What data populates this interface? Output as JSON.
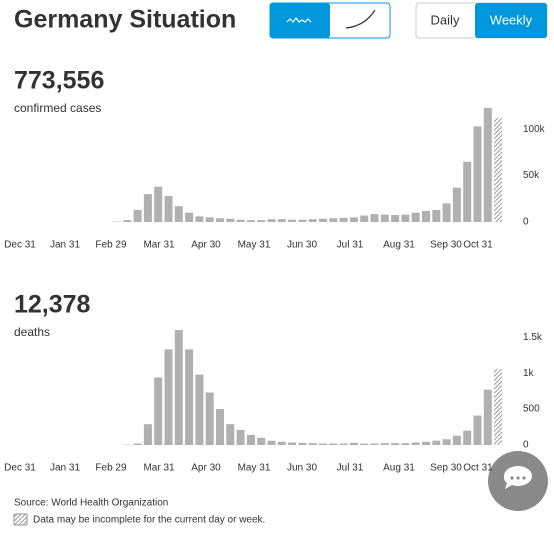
{
  "title": "Germany Situation",
  "buttons": [
    "Daily",
    "Weekly"
  ],
  "source": "Source:  World Health Organization",
  "note": "Data may be incomplete for the current day or week.",
  "chart_data": [
    {
      "type": "bar",
      "total": "773,556",
      "subtitle": "confirmed cases",
      "color": "#b0b0b0",
      "hatched_last": true,
      "categories": [
        null,
        null,
        null,
        null,
        null,
        null,
        null,
        null,
        null,
        null,
        null,
        null,
        null,
        null,
        null,
        null,
        null,
        null,
        null,
        null,
        null,
        null,
        null,
        null,
        null,
        null,
        null,
        null,
        null,
        null,
        null,
        null,
        null,
        null,
        null,
        null,
        null,
        null
      ],
      "values": [
        500,
        2000,
        13000,
        30000,
        38000,
        28000,
        17000,
        10000,
        6000,
        5000,
        4000,
        3500,
        2500,
        2000,
        2000,
        3000,
        3000,
        2500,
        2500,
        3000,
        3500,
        4000,
        4500,
        5000,
        7000,
        8500,
        8000,
        7500,
        8000,
        10000,
        12000,
        13000,
        20000,
        37000,
        65000,
        103000,
        123000,
        112000
      ],
      "xticks": [
        "Dec 31",
        "Jan 31",
        "Feb 29",
        "Mar 31",
        "Apr 30",
        "May 31",
        "Jun 30",
        "Jul 31",
        "Aug 31",
        "Sep 30",
        "Oct 31"
      ],
      "ylim": [
        0,
        125000
      ],
      "yticks": [
        {
          "value": 0,
          "label": "0"
        },
        {
          "value": 50000,
          "label": "50k"
        },
        {
          "value": 100000,
          "label": "100k"
        }
      ]
    },
    {
      "type": "bar",
      "total": "12,378",
      "subtitle": "deaths",
      "color": "#b0b0b0",
      "hatched_last": true,
      "categories": [
        null,
        null,
        null,
        null,
        null,
        null,
        null,
        null,
        null,
        null,
        null,
        null,
        null,
        null,
        null,
        null,
        null,
        null,
        null,
        null,
        null,
        null,
        null,
        null,
        null,
        null,
        null,
        null,
        null,
        null,
        null,
        null,
        null,
        null,
        null,
        null,
        null,
        null
      ],
      "values": [
        0,
        5,
        20,
        290,
        940,
        1330,
        1600,
        1330,
        980,
        730,
        500,
        290,
        210,
        140,
        100,
        60,
        45,
        35,
        30,
        25,
        20,
        20,
        20,
        30,
        20,
        20,
        25,
        25,
        25,
        35,
        45,
        60,
        80,
        130,
        200,
        410,
        770,
        1060
      ],
      "xticks": [
        "Dec 31",
        "Jan 31",
        "Feb 29",
        "Mar 31",
        "Apr 30",
        "May 31",
        "Jun 30",
        "Jul 31",
        "Aug 31",
        "Sep 30",
        "Oct 31"
      ],
      "ylim": [
        0,
        1600
      ],
      "yticks": [
        0,
        500,
        {
          "value": 1000,
          "label": "1k"
        },
        {
          "value": 1500,
          "label": "1.5k"
        }
      ]
    }
  ]
}
